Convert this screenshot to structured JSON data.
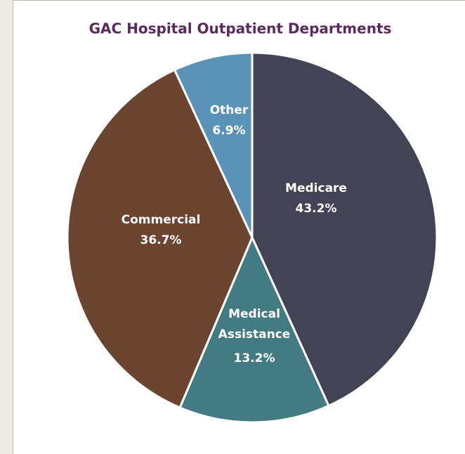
{
  "chart_data": {
    "type": "pie",
    "title": "GAC Hospital Outpatient Departments",
    "categories": [
      "Medicare",
      "Medical Assistance",
      "Commercial",
      "Other"
    ],
    "values": [
      43.2,
      13.2,
      36.7,
      6.9
    ],
    "value_labels": [
      "43.2%",
      "13.2%",
      "36.7%",
      "6.9%"
    ],
    "colors": [
      "#434356",
      "#427c82",
      "#6b4530",
      "#5b93b8"
    ]
  }
}
